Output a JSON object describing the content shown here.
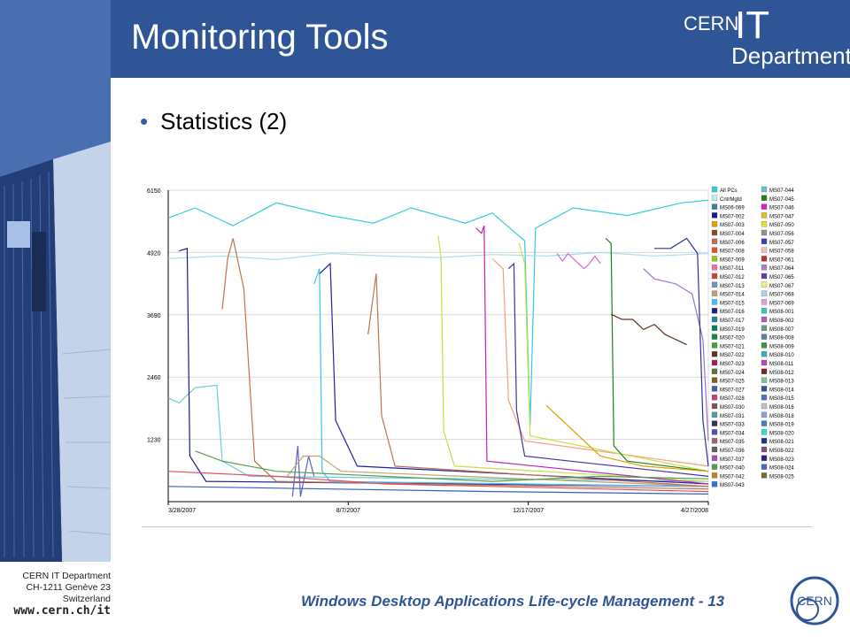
{
  "slide": {
    "title": "Monitoring Tools",
    "bullet": "Statistics (2)",
    "logo": {
      "cern": "CERN",
      "it": "IT",
      "department": "Department"
    },
    "footer_title": "Windows Desktop Applications Life-cycle Management - 13",
    "address": [
      "CERN IT Department",
      "CH-1211 Genève 23",
      "Switzerland"
    ],
    "url": "www.cern.ch/it",
    "round_logo": "CERN"
  },
  "colors": {
    "header": "#2f5597",
    "footer_text": "#2f5597",
    "bullet": "#3b5ca8"
  },
  "chart_data": {
    "type": "line",
    "title": "",
    "xlabel": "",
    "ylabel": "",
    "y_ticks": [
      6150,
      4920,
      3690,
      2460,
      1230
    ],
    "ylim": [
      0,
      6150
    ],
    "x_tick_labels": [
      "3/28/2007",
      "8/7/2007",
      "12/17/2007",
      "4/27/2008"
    ],
    "x_range": [
      "3/28/2007",
      "4/27/2008"
    ],
    "grid": true,
    "legend_position": "right",
    "legend": [
      {
        "name": "All PCs",
        "color": "#33ccdd"
      },
      {
        "name": "CntrMgtd",
        "color": "#bfeee8"
      },
      {
        "name": "MS06-069",
        "color": "#3a7f9f"
      },
      {
        "name": "MS07-002",
        "color": "#1a1a8c"
      },
      {
        "name": "MS07-003",
        "color": "#e0a000"
      },
      {
        "name": "MS07-004",
        "color": "#8a4a2a"
      },
      {
        "name": "MS07-006",
        "color": "#c07050"
      },
      {
        "name": "MS07-008",
        "color": "#e05020"
      },
      {
        "name": "MS07-009",
        "color": "#a0c020"
      },
      {
        "name": "MS07-011",
        "color": "#f070a0"
      },
      {
        "name": "MS07-012",
        "color": "#d04040"
      },
      {
        "name": "MS07-013",
        "color": "#7090c0"
      },
      {
        "name": "MS07-014",
        "color": "#c0a070"
      },
      {
        "name": "MS07-015",
        "color": "#40c0f0"
      },
      {
        "name": "MS07-016",
        "color": "#202080"
      },
      {
        "name": "MS07-017",
        "color": "#2080a0"
      },
      {
        "name": "MS07-019",
        "color": "#008060"
      },
      {
        "name": "MS07-020",
        "color": "#208040"
      },
      {
        "name": "MS07-021",
        "color": "#40a040"
      },
      {
        "name": "MS07-022",
        "color": "#603020"
      },
      {
        "name": "MS07-023",
        "color": "#a02050"
      },
      {
        "name": "MS07-024",
        "color": "#607040"
      },
      {
        "name": "MS07-025",
        "color": "#806020"
      },
      {
        "name": "MS07-027",
        "color": "#4060a0"
      },
      {
        "name": "MS07-028",
        "color": "#c04080"
      },
      {
        "name": "MS07-030",
        "color": "#805060"
      },
      {
        "name": "MS07-031",
        "color": "#40a0a0"
      },
      {
        "name": "MS07-033",
        "color": "#303060"
      },
      {
        "name": "MS07-034",
        "color": "#5050b0"
      },
      {
        "name": "MS07-035",
        "color": "#a06080"
      },
      {
        "name": "MS07-036",
        "color": "#606060"
      },
      {
        "name": "MS07-037",
        "color": "#a050c0"
      },
      {
        "name": "MS07-040",
        "color": "#50a050"
      },
      {
        "name": "MS07-042",
        "color": "#c08030"
      },
      {
        "name": "MS07-043",
        "color": "#3070d0"
      },
      {
        "name": "MS07-044",
        "color": "#70c0c0"
      },
      {
        "name": "MS07-045",
        "color": "#208020"
      },
      {
        "name": "MS07-046",
        "color": "#e020c0"
      },
      {
        "name": "MS07-047",
        "color": "#e0c020"
      },
      {
        "name": "MS07-050",
        "color": "#e0e040"
      },
      {
        "name": "MS07-056",
        "color": "#909090"
      },
      {
        "name": "MS07-057",
        "color": "#3040c0"
      },
      {
        "name": "MS07-058",
        "color": "#f0c0c0"
      },
      {
        "name": "MS07-061",
        "color": "#c03030"
      },
      {
        "name": "MS07-064",
        "color": "#a080d0"
      },
      {
        "name": "MS07-065",
        "color": "#604090"
      },
      {
        "name": "MS07-067",
        "color": "#f0f080"
      },
      {
        "name": "MS07-068",
        "color": "#b0d0f0"
      },
      {
        "name": "MS07-069",
        "color": "#e0a0e0"
      },
      {
        "name": "MS08-001",
        "color": "#40c0c0"
      },
      {
        "name": "MS08-002",
        "color": "#b060b0"
      },
      {
        "name": "MS08-007",
        "color": "#60a080"
      },
      {
        "name": "MS08-008",
        "color": "#6080a0"
      },
      {
        "name": "MS08-009",
        "color": "#409040"
      },
      {
        "name": "MS08-010",
        "color": "#30b0b0"
      },
      {
        "name": "MS08-011",
        "color": "#c040c0"
      },
      {
        "name": "MS08-012",
        "color": "#802020"
      },
      {
        "name": "MS08-013",
        "color": "#80c0a0"
      },
      {
        "name": "MS08-014",
        "color": "#3050a0"
      },
      {
        "name": "MS08-015",
        "color": "#5070c0"
      },
      {
        "name": "MS08-016",
        "color": "#c0c0c0"
      },
      {
        "name": "MS08-018",
        "color": "#90a0d0"
      },
      {
        "name": "MS08-019",
        "color": "#4080c0"
      },
      {
        "name": "MS08-020",
        "color": "#30e0c0"
      },
      {
        "name": "MS08-021",
        "color": "#203080"
      },
      {
        "name": "MS08-022",
        "color": "#805080"
      },
      {
        "name": "MS08-023",
        "color": "#302080"
      },
      {
        "name": "MS08-024",
        "color": "#4070b0"
      },
      {
        "name": "MS08-025",
        "color": "#707030"
      }
    ],
    "series": [
      {
        "name": "All PCs",
        "color": "#33ccdd",
        "points": [
          [
            0,
            5600
          ],
          [
            0.05,
            5800
          ],
          [
            0.12,
            5450
          ],
          [
            0.2,
            5900
          ],
          [
            0.3,
            5650
          ],
          [
            0.38,
            5500
          ],
          [
            0.45,
            5800
          ],
          [
            0.55,
            5500
          ],
          [
            0.6,
            5700
          ],
          [
            0.66,
            5150
          ],
          [
            0.67,
            1500
          ],
          [
            0.68,
            5400
          ],
          [
            0.75,
            5800
          ],
          [
            0.85,
            5650
          ],
          [
            0.95,
            5900
          ],
          [
            1.0,
            5950
          ]
        ]
      },
      {
        "name": "CntrMgtd",
        "color": "#a8e0e8",
        "points": [
          [
            0,
            4800
          ],
          [
            0.1,
            4850
          ],
          [
            0.2,
            4780
          ],
          [
            0.3,
            4900
          ],
          [
            0.4,
            4850
          ],
          [
            0.5,
            4820
          ],
          [
            0.6,
            4880
          ],
          [
            0.7,
            4850
          ],
          [
            0.8,
            4920
          ],
          [
            0.9,
            4850
          ],
          [
            1.0,
            4900
          ]
        ]
      },
      {
        "name": "MS06-069",
        "color": "#6fc8d8",
        "points": [
          [
            0,
            2050
          ],
          [
            0.02,
            1950
          ],
          [
            0.05,
            2250
          ],
          [
            0.09,
            2300
          ],
          [
            0.1,
            800
          ],
          [
            0.15,
            500
          ],
          [
            1.0,
            400
          ]
        ]
      },
      {
        "name": "MS07-002",
        "color": "#1a1a8c",
        "points": [
          [
            0.02,
            4950
          ],
          [
            0.035,
            5000
          ],
          [
            0.04,
            900
          ],
          [
            0.07,
            400
          ],
          [
            1.0,
            300
          ]
        ]
      },
      {
        "name": "MS07-008",
        "color": "#c07050",
        "points": [
          [
            0.1,
            3800
          ],
          [
            0.11,
            4800
          ],
          [
            0.12,
            5200
          ],
          [
            0.14,
            4200
          ],
          [
            0.16,
            800
          ],
          [
            0.2,
            400
          ],
          [
            1.0,
            250
          ]
        ]
      },
      {
        "name": "MS07-016",
        "color": "#6060c0",
        "points": [
          [
            0.23,
            100
          ],
          [
            0.24,
            1100
          ],
          [
            0.245,
            100
          ],
          [
            0.26,
            900
          ],
          [
            0.27,
            500
          ]
        ]
      },
      {
        "name": "MS07-017",
        "color": "#40c0f0",
        "points": [
          [
            0.27,
            4300
          ],
          [
            0.28,
            4600
          ],
          [
            0.285,
            600
          ],
          [
            0.3,
            400
          ],
          [
            1.0,
            300
          ]
        ]
      },
      {
        "name": "MS07-019",
        "color": "#2020a0",
        "points": [
          [
            0.28,
            4500
          ],
          [
            0.3,
            4700
          ],
          [
            0.31,
            1600
          ],
          [
            0.35,
            700
          ],
          [
            1.0,
            350
          ]
        ]
      },
      {
        "name": "MS07-021",
        "color": "#c0a070",
        "points": [
          [
            0.22,
            500
          ],
          [
            0.25,
            900
          ],
          [
            0.28,
            900
          ],
          [
            0.32,
            600
          ],
          [
            1.0,
            300
          ]
        ]
      },
      {
        "name": "MS07-033",
        "color": "#c07050",
        "points": [
          [
            0.37,
            3300
          ],
          [
            0.385,
            4500
          ],
          [
            0.395,
            1700
          ],
          [
            0.42,
            700
          ],
          [
            1.0,
            300
          ]
        ]
      },
      {
        "name": "MS07-040",
        "color": "#c8e040",
        "points": [
          [
            0.5,
            5250
          ],
          [
            0.505,
            4800
          ],
          [
            0.51,
            1400
          ],
          [
            0.53,
            700
          ],
          [
            1.0,
            400
          ]
        ]
      },
      {
        "name": "MS07-042",
        "color": "#c020c0",
        "points": [
          [
            0.57,
            5400
          ],
          [
            0.58,
            5300
          ],
          [
            0.585,
            5450
          ],
          [
            0.59,
            800
          ],
          [
            1.0,
            350
          ]
        ]
      },
      {
        "name": "MS07-043",
        "color": "#f0a080",
        "points": [
          [
            0.6,
            4800
          ],
          [
            0.62,
            4600
          ],
          [
            0.63,
            2000
          ],
          [
            0.66,
            1200
          ],
          [
            1.0,
            700
          ]
        ]
      },
      {
        "name": "MS07-044",
        "color": "#4030a0",
        "points": [
          [
            0.63,
            4600
          ],
          [
            0.64,
            4700
          ],
          [
            0.645,
            1800
          ],
          [
            0.66,
            900
          ],
          [
            1.0,
            500
          ]
        ]
      },
      {
        "name": "MS07-045",
        "color": "#c8e040",
        "points": [
          [
            0.65,
            5100
          ],
          [
            0.66,
            4700
          ],
          [
            0.67,
            1300
          ],
          [
            1.0,
            600
          ]
        ]
      },
      {
        "name": "MS07-046",
        "color": "#d070d0",
        "points": [
          [
            0.72,
            4900
          ],
          [
            0.73,
            4750
          ],
          [
            0.74,
            4900
          ],
          [
            0.75,
            4800
          ],
          [
            0.76,
            4700
          ],
          [
            0.77,
            4600
          ],
          [
            0.78,
            4700
          ],
          [
            0.79,
            4850
          ],
          [
            0.8,
            4700
          ]
        ]
      },
      {
        "name": "MS08-001",
        "color": "#208020",
        "points": [
          [
            0.81,
            5200
          ],
          [
            0.82,
            5100
          ],
          [
            0.825,
            1100
          ],
          [
            0.85,
            800
          ],
          [
            1.0,
            600
          ]
        ]
      },
      {
        "name": "MS08-002",
        "color": "#603020",
        "points": [
          [
            0.82,
            3700
          ],
          [
            0.84,
            3600
          ],
          [
            0.86,
            3600
          ],
          [
            0.88,
            3400
          ],
          [
            0.9,
            3500
          ],
          [
            0.92,
            3300
          ],
          [
            0.94,
            3200
          ],
          [
            0.96,
            3100
          ]
        ]
      },
      {
        "name": "MS08-007",
        "color": "#a070d0",
        "points": [
          [
            0.88,
            4600
          ],
          [
            0.9,
            4400
          ],
          [
            0.94,
            4300
          ],
          [
            0.97,
            4100
          ],
          [
            0.99,
            3200
          ],
          [
            1.0,
            1200
          ]
        ]
      },
      {
        "name": "MS08-008",
        "color": "#30309a",
        "points": [
          [
            0.9,
            5000
          ],
          [
            0.93,
            5000
          ],
          [
            0.96,
            5200
          ],
          [
            0.98,
            4900
          ],
          [
            0.99,
            1600
          ],
          [
            1.0,
            700
          ]
        ]
      },
      {
        "name": "MS08-010",
        "color": "#e0a000",
        "points": [
          [
            0.7,
            1900
          ],
          [
            0.75,
            1400
          ],
          [
            0.8,
            900
          ],
          [
            0.88,
            700
          ],
          [
            1.0,
            600
          ]
        ]
      },
      {
        "name": "MS08-011",
        "color": "#50a050",
        "points": [
          [
            0.05,
            1000
          ],
          [
            0.1,
            800
          ],
          [
            0.2,
            600
          ],
          [
            0.4,
            500
          ],
          [
            0.6,
            400
          ],
          [
            0.8,
            500
          ],
          [
            1.0,
            450
          ]
        ]
      },
      {
        "name": "MS08-013",
        "color": "#e05060",
        "points": [
          [
            0,
            600
          ],
          [
            0.2,
            500
          ],
          [
            0.4,
            350
          ],
          [
            0.6,
            300
          ],
          [
            0.8,
            250
          ],
          [
            1.0,
            200
          ]
        ]
      },
      {
        "name": "MS08-014",
        "color": "#3060c0",
        "points": [
          [
            0,
            300
          ],
          [
            0.3,
            250
          ],
          [
            0.6,
            200
          ],
          [
            1.0,
            150
          ]
        ]
      }
    ]
  }
}
